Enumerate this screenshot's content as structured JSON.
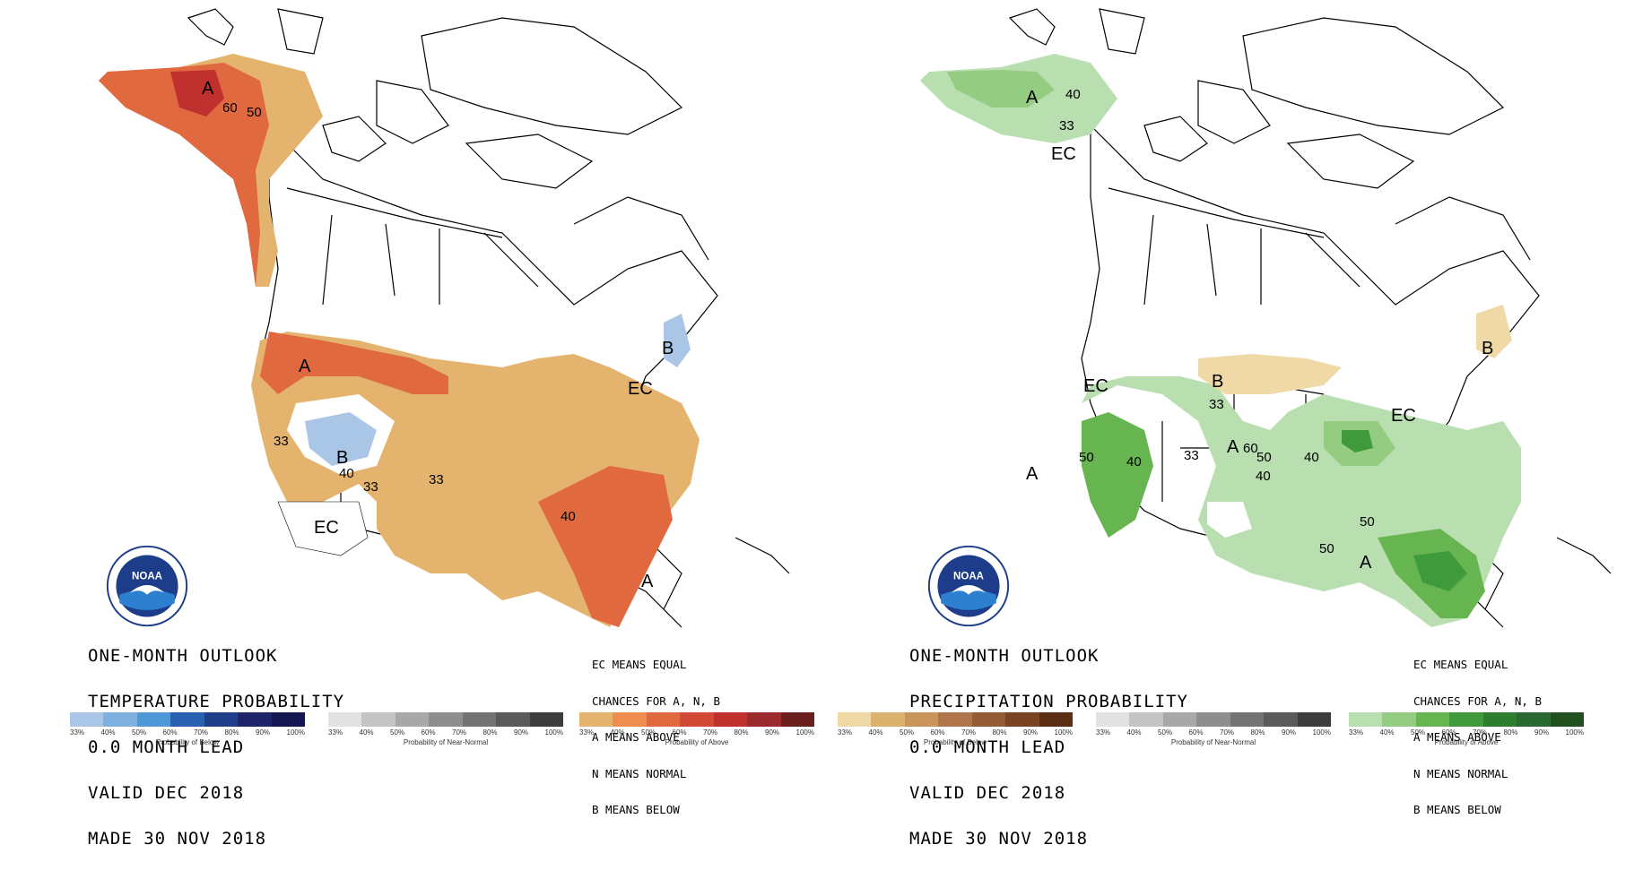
{
  "left_panel": {
    "title_lines": [
      "ONE-MONTH OUTLOOK",
      "TEMPERATURE PROBABILITY",
      "0.0 MONTH LEAD",
      "VALID DEC 2018",
      "MADE 30 NOV 2018"
    ],
    "ec_lines": [
      "EC MEANS EQUAL",
      "CHANCES FOR A, N, B",
      "A MEANS ABOVE",
      "N MEANS NORMAL",
      "B MEANS BELOW"
    ],
    "map_labels": {
      "alaska_a": "A",
      "alaska_60": "60",
      "alaska_50": "50",
      "nw_a": "A",
      "west_33": "33",
      "rockies_b": "B",
      "rockies_40": "40",
      "rockies_33": "33",
      "plains_33": "33",
      "sw_ec": "EC",
      "ne_b": "B",
      "ne_ec": "EC",
      "se_40": "40",
      "fl_a": "A"
    }
  },
  "right_panel": {
    "title_lines": [
      "ONE-MONTH OUTLOOK",
      "PRECIPITATION PROBABILITY",
      "0.0 MONTH LEAD",
      "VALID DEC 2018",
      "MADE 30 NOV 2018"
    ],
    "ec_lines": [
      "EC MEANS EQUAL",
      "CHANCES FOR A, N, B",
      "A MEANS ABOVE",
      "N MEANS NORMAL",
      "B MEANS BELOW"
    ],
    "map_labels": {
      "alaska_a": "A",
      "alaska_40": "40",
      "alaska_33": "33",
      "canada_ec": "EC",
      "nw_ec": "EC",
      "north_b": "B",
      "north_33": "33",
      "ne_b": "B",
      "ne_ec": "EC",
      "west_a": "A",
      "west_50": "50",
      "west_40": "40",
      "mid_33": "33",
      "mid_a": "A",
      "mid_60": "60",
      "mid_50": "50",
      "mid_40a": "40",
      "mid_40b": "40",
      "se_50a": "50",
      "se_50b": "50",
      "se_a": "A"
    }
  },
  "colorbars": [
    {
      "title": "Probability of Below",
      "colors": [
        "#a9c6e6",
        "#7fb0e0",
        "#4e98d8",
        "#2a60b0",
        "#1e3e8a",
        "#1f2368",
        "#151552"
      ],
      "ticks": [
        "33%",
        "40%",
        "50%",
        "60%",
        "70%",
        "80%",
        "90%",
        "100%"
      ]
    },
    {
      "title": "Probability of Near-Normal",
      "colors": [
        "#e2e2e2",
        "#c4c4c4",
        "#a8a8a8",
        "#8e8e8e",
        "#737373",
        "#5a5a5a",
        "#3c3c3c"
      ],
      "ticks": [
        "33%",
        "40%",
        "50%",
        "60%",
        "70%",
        "80%",
        "90%",
        "100%"
      ]
    },
    {
      "title": "Probability of Above",
      "colors": [
        "#e4b46f",
        "#ee8d4f",
        "#e0693f",
        "#d04a36",
        "#c0302e",
        "#9a2a2e",
        "#6b1e1e"
      ],
      "ticks": [
        "33%",
        "40%",
        "50%",
        "60%",
        "70%",
        "80%",
        "90%",
        "100%"
      ]
    },
    {
      "title": "Probability of Below",
      "colors": [
        "#efd9a6",
        "#dcb36e",
        "#c9955a",
        "#b0744a",
        "#955a36",
        "#7a4422",
        "#5a2e14"
      ],
      "ticks": [
        "33%",
        "40%",
        "50%",
        "60%",
        "70%",
        "80%",
        "90%",
        "100%"
      ]
    },
    {
      "title": "Probability of Near-Normal",
      "colors": [
        "#e2e2e2",
        "#c4c4c4",
        "#a8a8a8",
        "#8e8e8e",
        "#737373",
        "#5a5a5a",
        "#3c3c3c"
      ],
      "ticks": [
        "33%",
        "40%",
        "50%",
        "60%",
        "70%",
        "80%",
        "90%",
        "100%"
      ]
    },
    {
      "title": "Probability of Above",
      "colors": [
        "#b9deb0",
        "#94cd82",
        "#66b550",
        "#3f9a3c",
        "#2f7e2f",
        "#2a6a32",
        "#214f1e"
      ],
      "ticks": [
        "33%",
        "40%",
        "50%",
        "60%",
        "70%",
        "80%",
        "90%",
        "100%"
      ]
    }
  ]
}
